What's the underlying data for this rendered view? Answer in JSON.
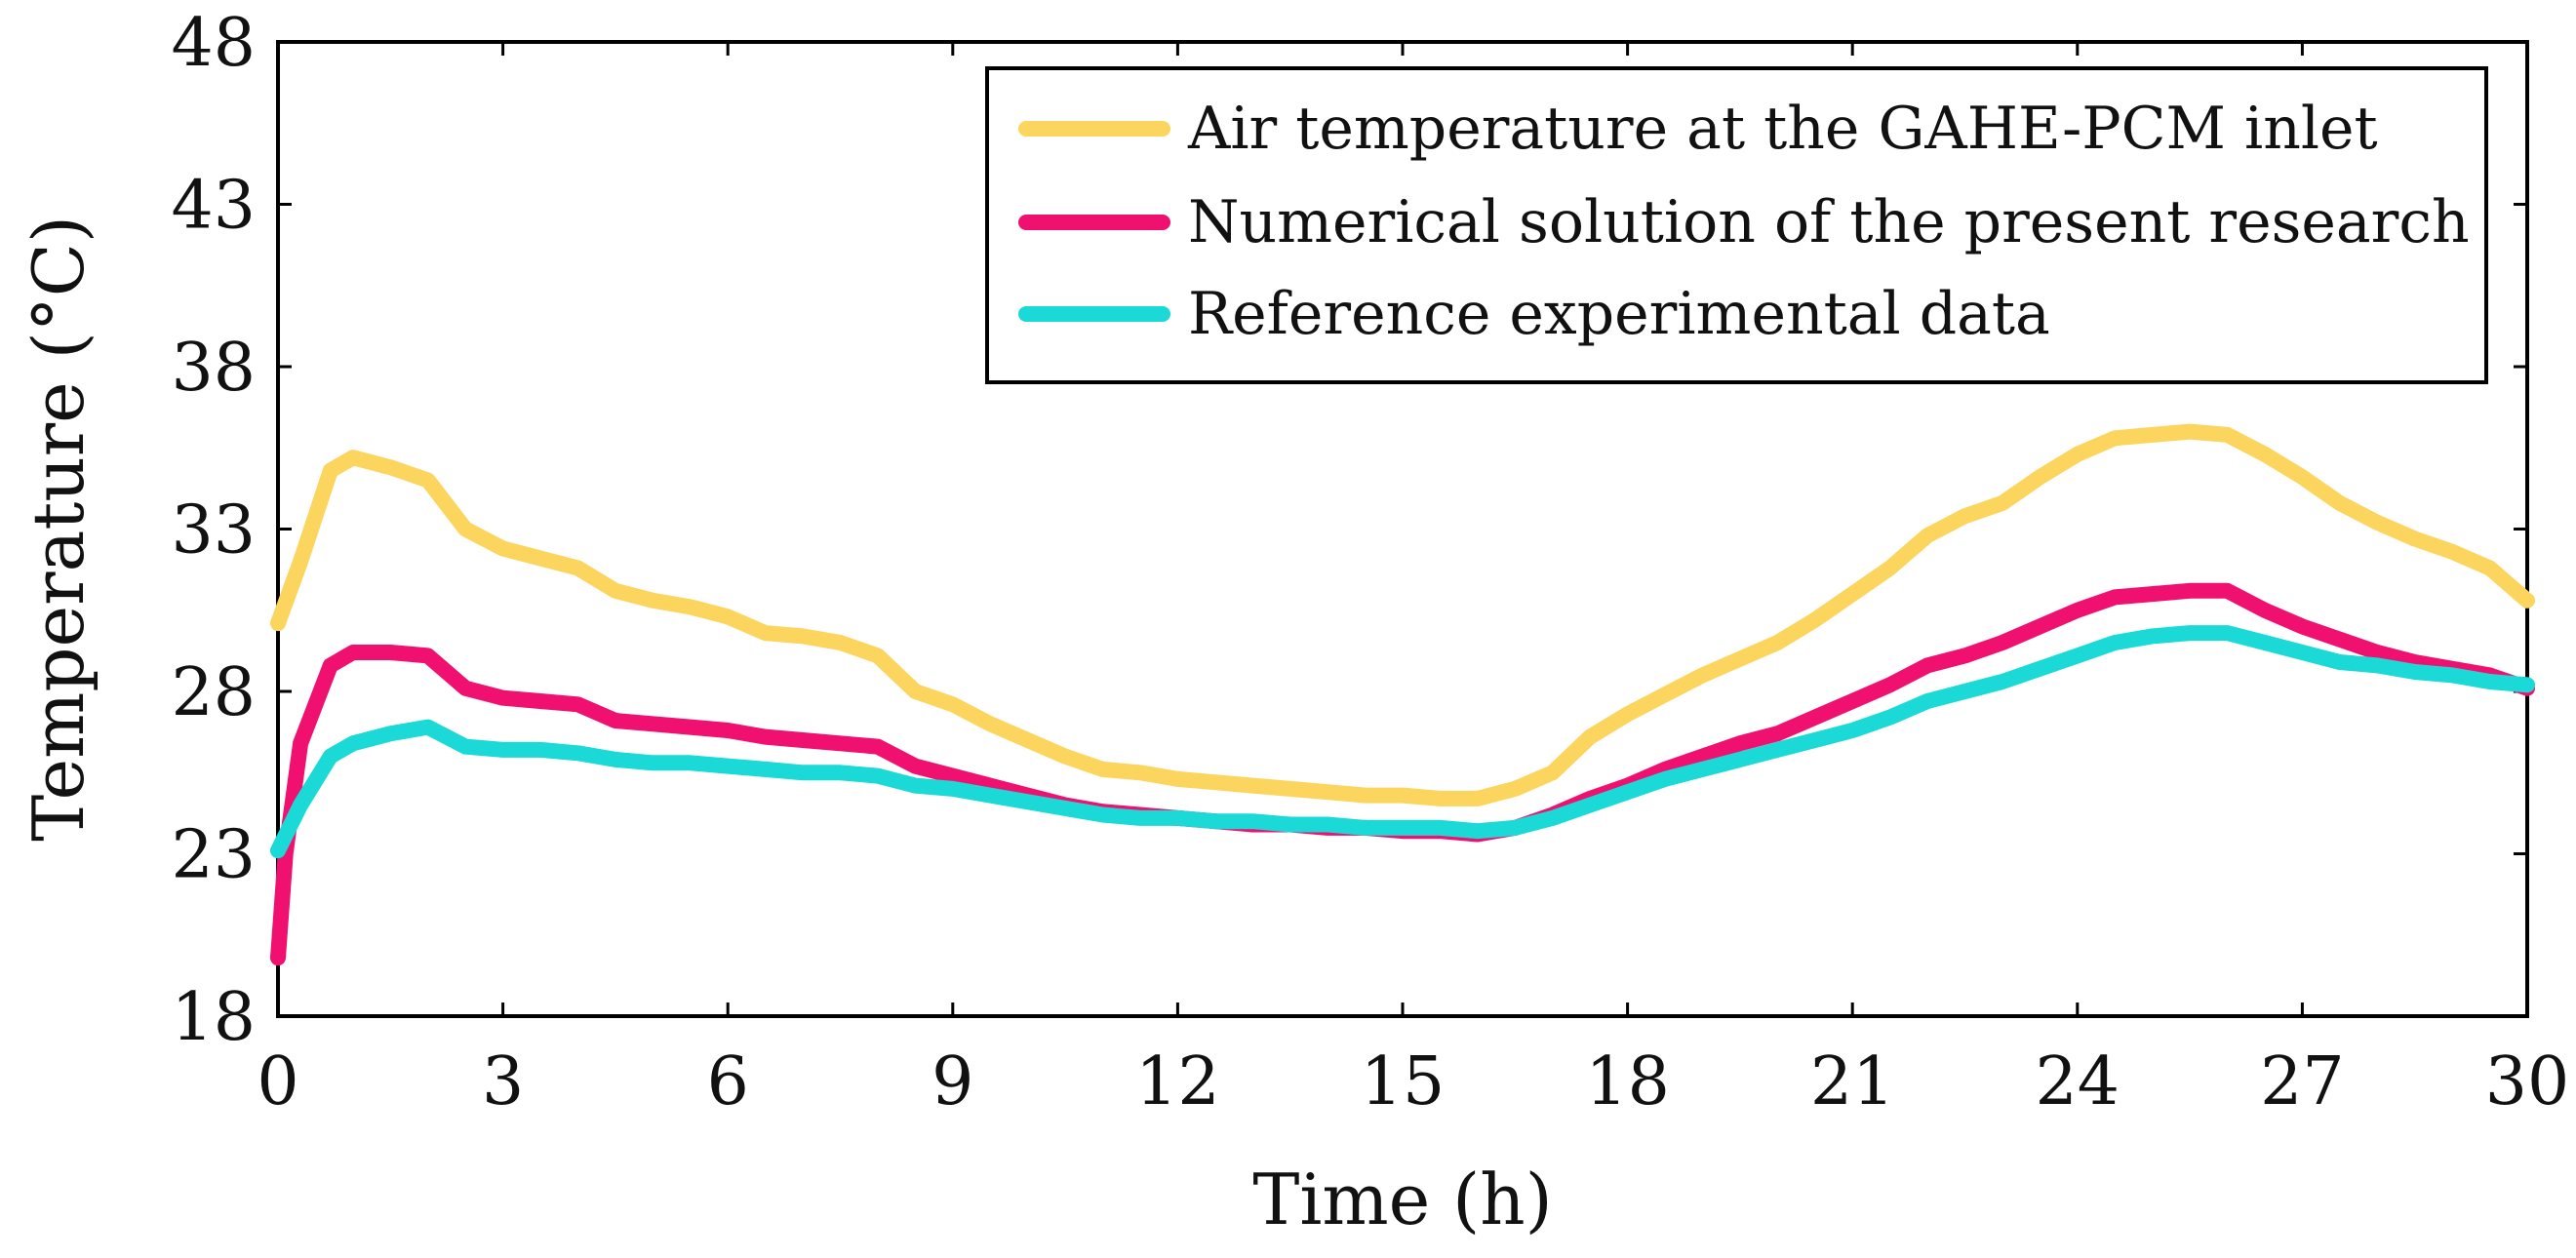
{
  "chart_data": {
    "type": "line",
    "title": "",
    "xlabel": "Time (h)",
    "ylabel": "Temperature (°C)",
    "xlim": [
      0,
      30
    ],
    "ylim": [
      18,
      48
    ],
    "xticks": [
      0,
      3,
      6,
      9,
      12,
      15,
      18,
      21,
      24,
      27,
      30
    ],
    "yticks": [
      18,
      23,
      28,
      33,
      38,
      43,
      48
    ],
    "grid": false,
    "legend_position": "top-right",
    "series": [
      {
        "name": "Air temperature at the GAHE-PCM inlet",
        "color": "#fcd55e",
        "x": [
          0,
          0.3,
          0.7,
          1,
          1.5,
          2,
          2.5,
          3,
          3.5,
          4,
          4.5,
          5,
          5.5,
          6,
          6.5,
          7,
          7.5,
          8,
          8.5,
          9,
          9.5,
          10,
          10.5,
          11,
          11.5,
          12,
          12.5,
          13,
          13.5,
          14,
          14.5,
          15,
          15.5,
          16,
          16.5,
          17,
          17.5,
          18,
          18.5,
          19,
          19.5,
          20,
          20.5,
          21,
          21.5,
          22,
          22.5,
          23,
          23.5,
          24,
          24.5,
          25,
          25.5,
          26,
          26.5,
          27,
          27.5,
          28,
          28.5,
          29,
          29.5,
          30
        ],
        "values": [
          30.1,
          32.0,
          34.8,
          35.2,
          34.9,
          34.5,
          33.0,
          32.4,
          32.1,
          31.8,
          31.1,
          30.8,
          30.6,
          30.3,
          29.8,
          29.7,
          29.5,
          29.1,
          28.0,
          27.6,
          27.0,
          26.5,
          26.0,
          25.6,
          25.5,
          25.3,
          25.2,
          25.1,
          25.0,
          24.9,
          24.8,
          24.8,
          24.7,
          24.7,
          25.0,
          25.5,
          26.6,
          27.3,
          27.9,
          28.5,
          29.0,
          29.5,
          30.2,
          31.0,
          31.8,
          32.8,
          33.4,
          33.8,
          34.6,
          35.3,
          35.8,
          35.9,
          36.0,
          35.9,
          35.3,
          34.6,
          33.8,
          33.2,
          32.7,
          32.3,
          31.8,
          30.8
        ]
      },
      {
        "name": "Numerical solution of the present research",
        "color": "#f0106f",
        "x": [
          0,
          0.1,
          0.3,
          0.7,
          1,
          1.5,
          2,
          2.5,
          3,
          3.5,
          4,
          4.5,
          5,
          5.5,
          6,
          6.5,
          7,
          7.5,
          8,
          8.5,
          9,
          9.5,
          10,
          10.5,
          11,
          11.5,
          12,
          12.5,
          13,
          13.5,
          14,
          14.5,
          15,
          15.5,
          16,
          16.5,
          17,
          17.5,
          18,
          18.5,
          19,
          19.5,
          20,
          20.5,
          21,
          21.5,
          22,
          22.5,
          23,
          23.5,
          24,
          24.5,
          25,
          25.5,
          26,
          26.5,
          27,
          27.5,
          28,
          28.5,
          29,
          29.5,
          30
        ],
        "values": [
          19.8,
          23.0,
          26.4,
          28.8,
          29.2,
          29.2,
          29.1,
          28.1,
          27.8,
          27.7,
          27.6,
          27.1,
          27.0,
          26.9,
          26.8,
          26.6,
          26.5,
          26.4,
          26.3,
          25.7,
          25.4,
          25.1,
          24.8,
          24.5,
          24.3,
          24.2,
          24.1,
          24.0,
          23.9,
          23.9,
          23.8,
          23.8,
          23.7,
          23.7,
          23.6,
          23.8,
          24.2,
          24.7,
          25.1,
          25.6,
          26.0,
          26.4,
          26.7,
          27.2,
          27.7,
          28.2,
          28.8,
          29.1,
          29.5,
          30.0,
          30.5,
          30.9,
          31.0,
          31.1,
          31.1,
          30.5,
          30.0,
          29.6,
          29.2,
          28.9,
          28.7,
          28.5,
          28.1
        ]
      },
      {
        "name": "Reference experimental data",
        "color": "#1ad9d6",
        "x": [
          0,
          0.3,
          0.7,
          1,
          1.5,
          2,
          2.5,
          3,
          3.5,
          4,
          4.5,
          5,
          5.5,
          6,
          6.5,
          7,
          7.5,
          8,
          8.5,
          9,
          9.5,
          10,
          10.5,
          11,
          11.5,
          12,
          12.5,
          13,
          13.5,
          14,
          14.5,
          15,
          15.5,
          16,
          16.5,
          17,
          17.5,
          18,
          18.5,
          19,
          19.5,
          20,
          20.5,
          21,
          21.5,
          22,
          22.5,
          23,
          23.5,
          24,
          24.5,
          25,
          25.5,
          26,
          26.5,
          27,
          27.5,
          28,
          28.5,
          29,
          29.5,
          30
        ],
        "values": [
          23.1,
          24.5,
          26.0,
          26.4,
          26.7,
          26.9,
          26.3,
          26.2,
          26.2,
          26.1,
          25.9,
          25.8,
          25.8,
          25.7,
          25.6,
          25.5,
          25.5,
          25.4,
          25.1,
          25.0,
          24.8,
          24.6,
          24.4,
          24.2,
          24.1,
          24.1,
          24.0,
          24.0,
          23.9,
          23.9,
          23.8,
          23.8,
          23.8,
          23.7,
          23.8,
          24.1,
          24.5,
          24.9,
          25.3,
          25.6,
          25.9,
          26.2,
          26.5,
          26.8,
          27.2,
          27.7,
          28.0,
          28.3,
          28.7,
          29.1,
          29.5,
          29.7,
          29.8,
          29.8,
          29.5,
          29.2,
          28.9,
          28.8,
          28.6,
          28.5,
          28.3,
          28.2
        ]
      }
    ]
  }
}
